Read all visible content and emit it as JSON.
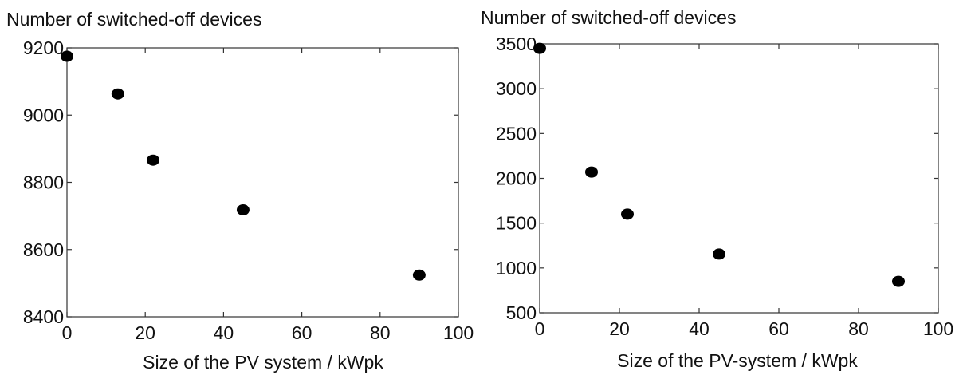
{
  "chart_data": [
    {
      "type": "scatter",
      "title": "",
      "ylabel": "Number of switched-off devices",
      "xlabel": "Size of the PV system / kWpk",
      "xlim": [
        0,
        100
      ],
      "ylim": [
        8400,
        9200
      ],
      "xticks": [
        "0",
        "20",
        "40",
        "60",
        "80",
        "100"
      ],
      "yticks": [
        "8400",
        "8600",
        "8800",
        "9000",
        "9200"
      ],
      "grid": false,
      "marker_color": "#000000",
      "series": [
        {
          "x": [
            0,
            13,
            22,
            45,
            90
          ],
          "y": [
            9175,
            9063,
            8866,
            8718,
            8524
          ]
        }
      ]
    },
    {
      "type": "scatter",
      "title": "",
      "ylabel": "Number of switched-off devices",
      "xlabel": "Size of the PV-system / kWpk",
      "xlim": [
        0,
        100
      ],
      "ylim": [
        500,
        3500
      ],
      "xticks": [
        "0",
        "20",
        "40",
        "60",
        "80",
        "100"
      ],
      "yticks": [
        "500",
        "1000",
        "1500",
        "2000",
        "2500",
        "3000",
        "3500"
      ],
      "grid": false,
      "marker_color": "#000000",
      "series": [
        {
          "x": [
            0,
            13,
            22,
            45,
            90
          ],
          "y": [
            3450,
            2070,
            1600,
            1155,
            850
          ]
        }
      ]
    }
  ]
}
